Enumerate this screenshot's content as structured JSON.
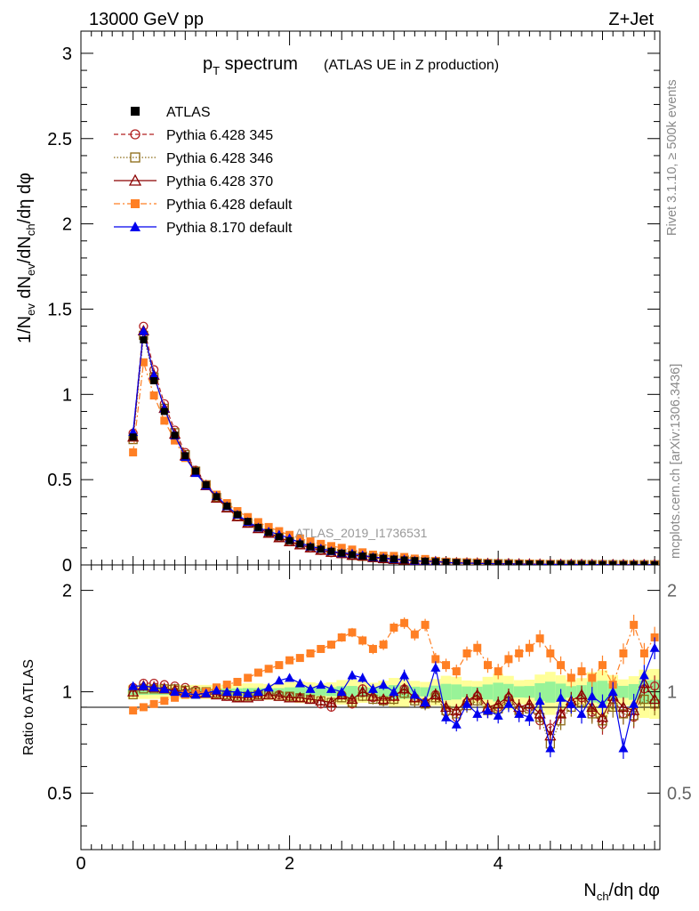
{
  "header": {
    "left": "13000 GeV pp",
    "right": "Z+Jet"
  },
  "title": {
    "main": "p",
    "main_sub": "T",
    "main_rest": " spectrum",
    "sub": "(ATLAS UE in Z production)"
  },
  "side_labels": {
    "rivet": "Rivet 3.1.10, ≥ 500k events",
    "mcplots": "mcplots.cern.ch [arXiv:1306.3436]"
  },
  "analysis_tag": "ATLAS_2019_I1736531",
  "axes": {
    "top_ylabel": "1/N_ev dN_ev/dN_ch/dη dφ",
    "bottom_ylabel": "Ratio to ATLAS",
    "xlabel": "N_ch/dη dφ",
    "top_yticks": [
      "0",
      "0.5",
      "1",
      "1.5",
      "2",
      "2.5",
      "3"
    ],
    "ratio_yticks": [
      "0.5",
      "1",
      "2"
    ],
    "xticks": [
      "0",
      "2",
      "4"
    ]
  },
  "legend": [
    {
      "label": "ATLAS",
      "color": "#000000",
      "marker": "square-filled",
      "line": "none"
    },
    {
      "label": "Pythia 6.428 345",
      "color": "#b22222",
      "marker": "circle-open",
      "line": "dashed"
    },
    {
      "label": "Pythia 6.428 346",
      "color": "#8b6914",
      "marker": "square-open",
      "line": "dotted"
    },
    {
      "label": "Pythia 6.428 370",
      "color": "#8b0000",
      "marker": "triangle-open",
      "line": "solid"
    },
    {
      "label": "Pythia 6.428 default",
      "color": "#ff7f24",
      "marker": "square-filled",
      "line": "dashdot"
    },
    {
      "label": "Pythia 8.170 default",
      "color": "#0000ee",
      "marker": "triangle-filled",
      "line": "solid"
    }
  ],
  "chart_data": {
    "type": "scatter",
    "title": "pT spectrum (ATLAS UE in Z production)",
    "xlabel": "N_ch/dη dφ",
    "ylabel": "1/N_ev dN_ev/dN_ch/dη dφ",
    "xlim": [
      0,
      5.55
    ],
    "ylim": [
      0,
      3.13
    ],
    "ratio_ylim": [
      0.34,
      2.38
    ],
    "ratio_yscale": "log",
    "x": [
      0.5,
      0.6,
      0.7,
      0.8,
      0.9,
      1.0,
      1.1,
      1.2,
      1.3,
      1.4,
      1.5,
      1.6,
      1.7,
      1.8,
      1.9,
      2.0,
      2.1,
      2.2,
      2.3,
      2.4,
      2.5,
      2.6,
      2.7,
      2.8,
      2.9,
      3.0,
      3.1,
      3.2,
      3.3,
      3.4,
      3.5,
      3.6,
      3.7,
      3.8,
      3.9,
      4.0,
      4.1,
      4.2,
      4.3,
      4.4,
      4.5,
      4.6,
      4.7,
      4.8,
      4.9,
      5.0,
      5.1,
      5.2,
      5.3,
      5.4,
      5.5
    ],
    "reference": {
      "name": "ATLAS",
      "values": [
        0.75,
        1.32,
        1.08,
        0.9,
        0.76,
        0.64,
        0.55,
        0.47,
        0.4,
        0.345,
        0.295,
        0.255,
        0.22,
        0.19,
        0.165,
        0.142,
        0.123,
        0.106,
        0.092,
        0.08,
        0.069,
        0.06,
        0.052,
        0.045,
        0.039,
        0.034,
        0.029,
        0.025,
        0.022,
        0.019,
        0.016,
        0.014,
        0.012,
        0.0105,
        0.009,
        0.0078,
        0.0068,
        0.0059,
        0.0051,
        0.0044,
        0.0038,
        0.0033,
        0.0029,
        0.0025,
        0.0022,
        0.0019,
        0.0016,
        0.0014,
        0.0012,
        0.001,
        0.0009
      ]
    },
    "series": [
      {
        "name": "Pythia 6.428 345",
        "ratio": [
          1.03,
          1.06,
          1.06,
          1.05,
          1.04,
          1.03,
          1.01,
          1.0,
          0.99,
          0.97,
          0.96,
          0.97,
          0.98,
          0.99,
          0.98,
          0.97,
          0.96,
          0.95,
          0.92,
          0.9,
          0.98,
          0.92,
          1.02,
          0.96,
          0.94,
          0.97,
          1.02,
          0.96,
          0.93,
          0.98,
          0.87,
          0.84,
          0.93,
          0.97,
          0.88,
          0.9,
          0.96,
          0.88,
          0.9,
          0.82,
          0.78,
          0.86,
          0.92,
          0.96,
          0.87,
          0.8,
          0.95,
          0.86,
          0.84,
          1.02,
          1.04
        ]
      },
      {
        "name": "Pythia 6.428 346",
        "ratio": [
          0.98,
          1.02,
          1.02,
          1.02,
          1.02,
          1.01,
          1.0,
          1.0,
          0.99,
          0.98,
          0.97,
          0.97,
          0.98,
          0.98,
          0.97,
          0.97,
          0.96,
          0.95,
          0.94,
          0.93,
          0.96,
          0.93,
          0.97,
          0.95,
          0.94,
          0.95,
          0.99,
          0.94,
          0.92,
          0.96,
          0.88,
          0.86,
          0.91,
          0.94,
          0.88,
          0.89,
          0.94,
          0.88,
          0.89,
          0.84,
          0.7,
          0.82,
          0.9,
          0.93,
          0.86,
          0.82,
          0.9,
          0.86,
          0.85,
          0.95,
          0.92
        ]
      },
      {
        "name": "Pythia 6.428 370",
        "ratio": [
          1.0,
          1.04,
          1.03,
          1.02,
          1.01,
          1.0,
          0.99,
          0.99,
          0.98,
          0.97,
          0.96,
          0.96,
          0.97,
          0.98,
          0.97,
          0.96,
          0.96,
          0.95,
          0.94,
          0.93,
          0.98,
          0.95,
          1.0,
          0.97,
          0.95,
          0.97,
          1.02,
          0.96,
          0.93,
          0.98,
          0.9,
          0.88,
          0.94,
          0.98,
          0.9,
          0.92,
          0.97,
          0.9,
          0.92,
          0.86,
          0.74,
          0.86,
          0.94,
          0.98,
          0.9,
          0.84,
          0.97,
          0.9,
          0.88,
          1.06,
          0.95
        ]
      },
      {
        "name": "Pythia 6.428 default",
        "ratio": [
          0.88,
          0.9,
          0.92,
          0.94,
          0.96,
          0.98,
          0.99,
          1.0,
          1.03,
          1.05,
          1.07,
          1.1,
          1.14,
          1.17,
          1.2,
          1.24,
          1.26,
          1.3,
          1.34,
          1.38,
          1.45,
          1.5,
          1.42,
          1.34,
          1.38,
          1.55,
          1.6,
          1.48,
          1.58,
          1.25,
          1.2,
          1.15,
          1.3,
          1.35,
          1.2,
          1.15,
          1.25,
          1.3,
          1.35,
          1.44,
          1.3,
          1.2,
          1.1,
          1.15,
          1.1,
          1.2,
          1.05,
          1.3,
          1.58,
          1.3,
          1.45
        ]
      },
      {
        "name": "Pythia 8.170 default",
        "ratio": [
          1.04,
          1.04,
          1.03,
          1.02,
          1.0,
          0.99,
          0.98,
          0.99,
          1.01,
          1.0,
          1.0,
          0.99,
          1.0,
          1.03,
          1.08,
          1.1,
          1.06,
          1.02,
          1.05,
          1.02,
          1.0,
          1.12,
          1.1,
          1.02,
          1.05,
          1.0,
          1.12,
          0.98,
          0.93,
          1.18,
          0.84,
          0.8,
          0.92,
          0.86,
          0.88,
          0.85,
          0.92,
          0.86,
          0.84,
          0.94,
          0.68,
          0.96,
          0.92,
          0.86,
          0.97,
          0.92,
          1.0,
          0.68,
          0.92,
          1.12,
          1.35
        ]
      }
    ],
    "uncertainty_bands": {
      "inner_color": "#98f398",
      "outer_color": "#ffff99"
    }
  }
}
